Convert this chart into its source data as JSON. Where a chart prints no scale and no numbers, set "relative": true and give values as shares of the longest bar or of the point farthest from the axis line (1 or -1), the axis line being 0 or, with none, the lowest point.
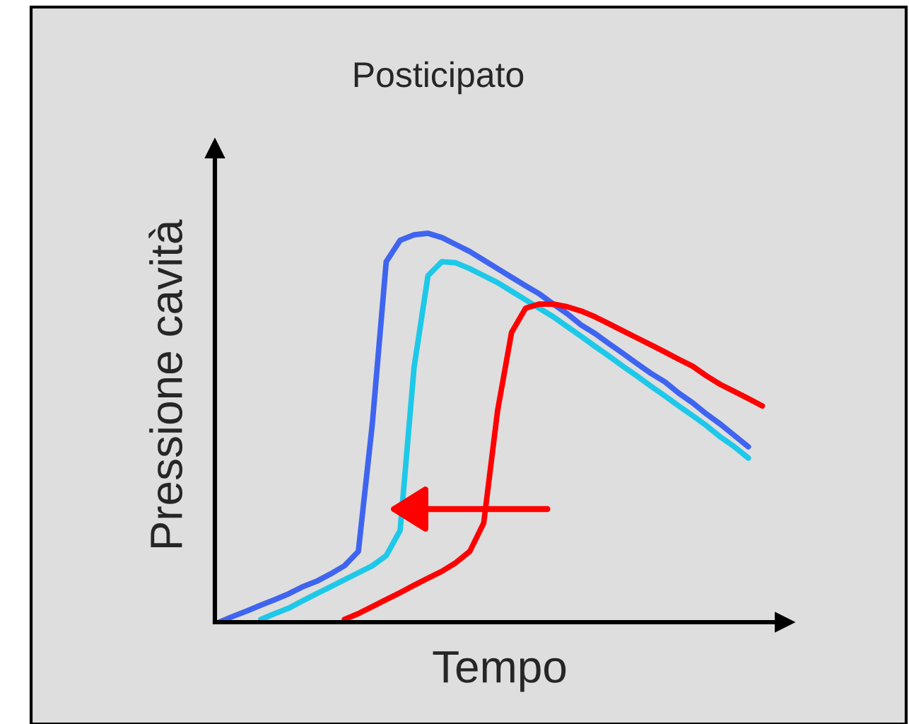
{
  "chart_data": {
    "type": "line",
    "relative": true,
    "title": "Posticipato",
    "xlabel": "Tempo",
    "ylabel": "Pressione cavità",
    "tick_labels": false,
    "grid": false,
    "legend": false,
    "marker": "none",
    "line_style": "solid",
    "categories": [
      null,
      null,
      null,
      null,
      null,
      null,
      null,
      null,
      null,
      null,
      null,
      null,
      null,
      null,
      null,
      null,
      null,
      null,
      null,
      null,
      null,
      null,
      null,
      null,
      null,
      null,
      null,
      null,
      null,
      null,
      null,
      null,
      null,
      null,
      null,
      null,
      null,
      null,
      null,
      null
    ],
    "series": [
      {
        "color": "#3f64f0",
        "values": [
          0,
          0.015,
          0.029,
          0.044,
          0.058,
          0.073,
          0.091,
          0.105,
          0.124,
          0.145,
          0.182,
          0.509,
          0.927,
          0.982,
          0.996,
          1,
          0.989,
          0.971,
          0.953,
          0.931,
          0.909,
          0.887,
          0.865,
          0.844,
          0.818,
          0.793,
          0.764,
          0.742,
          0.716,
          0.691,
          0.665,
          0.64,
          0.618,
          0.589,
          0.564,
          0.535,
          0.509,
          0.48,
          0.451,
          null
        ]
      },
      {
        "color": "#1ec8e8",
        "values": [
          null,
          null,
          null,
          0.007,
          0.022,
          0.036,
          0.055,
          0.073,
          0.091,
          0.109,
          0.127,
          0.145,
          0.171,
          0.236,
          0.655,
          0.891,
          0.927,
          0.924,
          0.909,
          0.891,
          0.873,
          0.851,
          0.829,
          0.807,
          0.785,
          0.76,
          0.735,
          0.709,
          0.684,
          0.658,
          0.633,
          0.607,
          0.582,
          0.556,
          0.531,
          0.505,
          0.476,
          0.451,
          0.422,
          null
        ]
      },
      {
        "color": "#ff0000",
        "values": [
          null,
          null,
          null,
          null,
          null,
          null,
          null,
          null,
          null,
          0.007,
          0.022,
          0.04,
          0.058,
          0.076,
          0.095,
          0.113,
          0.131,
          0.153,
          0.182,
          0.255,
          0.545,
          0.745,
          0.807,
          0.818,
          0.818,
          0.811,
          0.8,
          0.785,
          0.767,
          0.749,
          0.731,
          0.713,
          0.695,
          0.676,
          0.658,
          0.633,
          0.611,
          0.593,
          0.575,
          0.556
        ]
      }
    ]
  }
}
